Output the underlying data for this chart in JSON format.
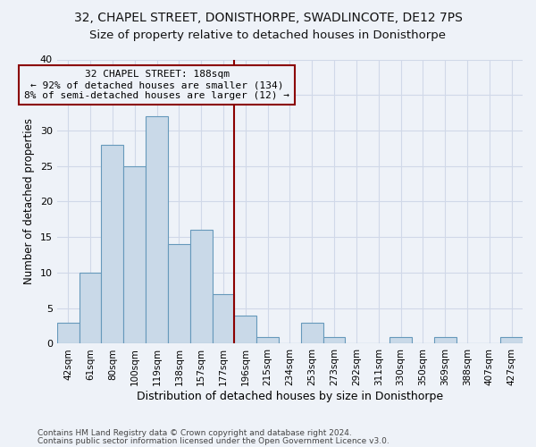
{
  "title1": "32, CHAPEL STREET, DONISTHORPE, SWADLINCOTE, DE12 7PS",
  "title2": "Size of property relative to detached houses in Donisthorpe",
  "xlabel": "Distribution of detached houses by size in Donisthorpe",
  "ylabel": "Number of detached properties",
  "bin_labels": [
    "42sqm",
    "61sqm",
    "80sqm",
    "100sqm",
    "119sqm",
    "138sqm",
    "157sqm",
    "177sqm",
    "196sqm",
    "215sqm",
    "234sqm",
    "253sqm",
    "273sqm",
    "292sqm",
    "311sqm",
    "330sqm",
    "350sqm",
    "369sqm",
    "388sqm",
    "407sqm",
    "427sqm"
  ],
  "bar_values": [
    3,
    10,
    28,
    25,
    32,
    14,
    16,
    7,
    4,
    1,
    0,
    3,
    1,
    0,
    0,
    1,
    0,
    1,
    0,
    0,
    1
  ],
  "bar_color": "#c9d9e8",
  "bar_edgecolor": "#6699bb",
  "grid_color": "#d0d8e8",
  "vline_x": 7.5,
  "vline_color": "#8b0000",
  "annotation_text": "32 CHAPEL STREET: 188sqm\n← 92% of detached houses are smaller (134)\n8% of semi-detached houses are larger (12) →",
  "annotation_box_color": "#8b0000",
  "annotation_text_color": "#000000",
  "ylim": [
    0,
    40
  ],
  "yticks": [
    0,
    5,
    10,
    15,
    20,
    25,
    30,
    35,
    40
  ],
  "footnote1": "Contains HM Land Registry data © Crown copyright and database right 2024.",
  "footnote2": "Contains public sector information licensed under the Open Government Licence v3.0.",
  "bg_color": "#eef2f8",
  "title1_fontsize": 10,
  "title2_fontsize": 9.5
}
